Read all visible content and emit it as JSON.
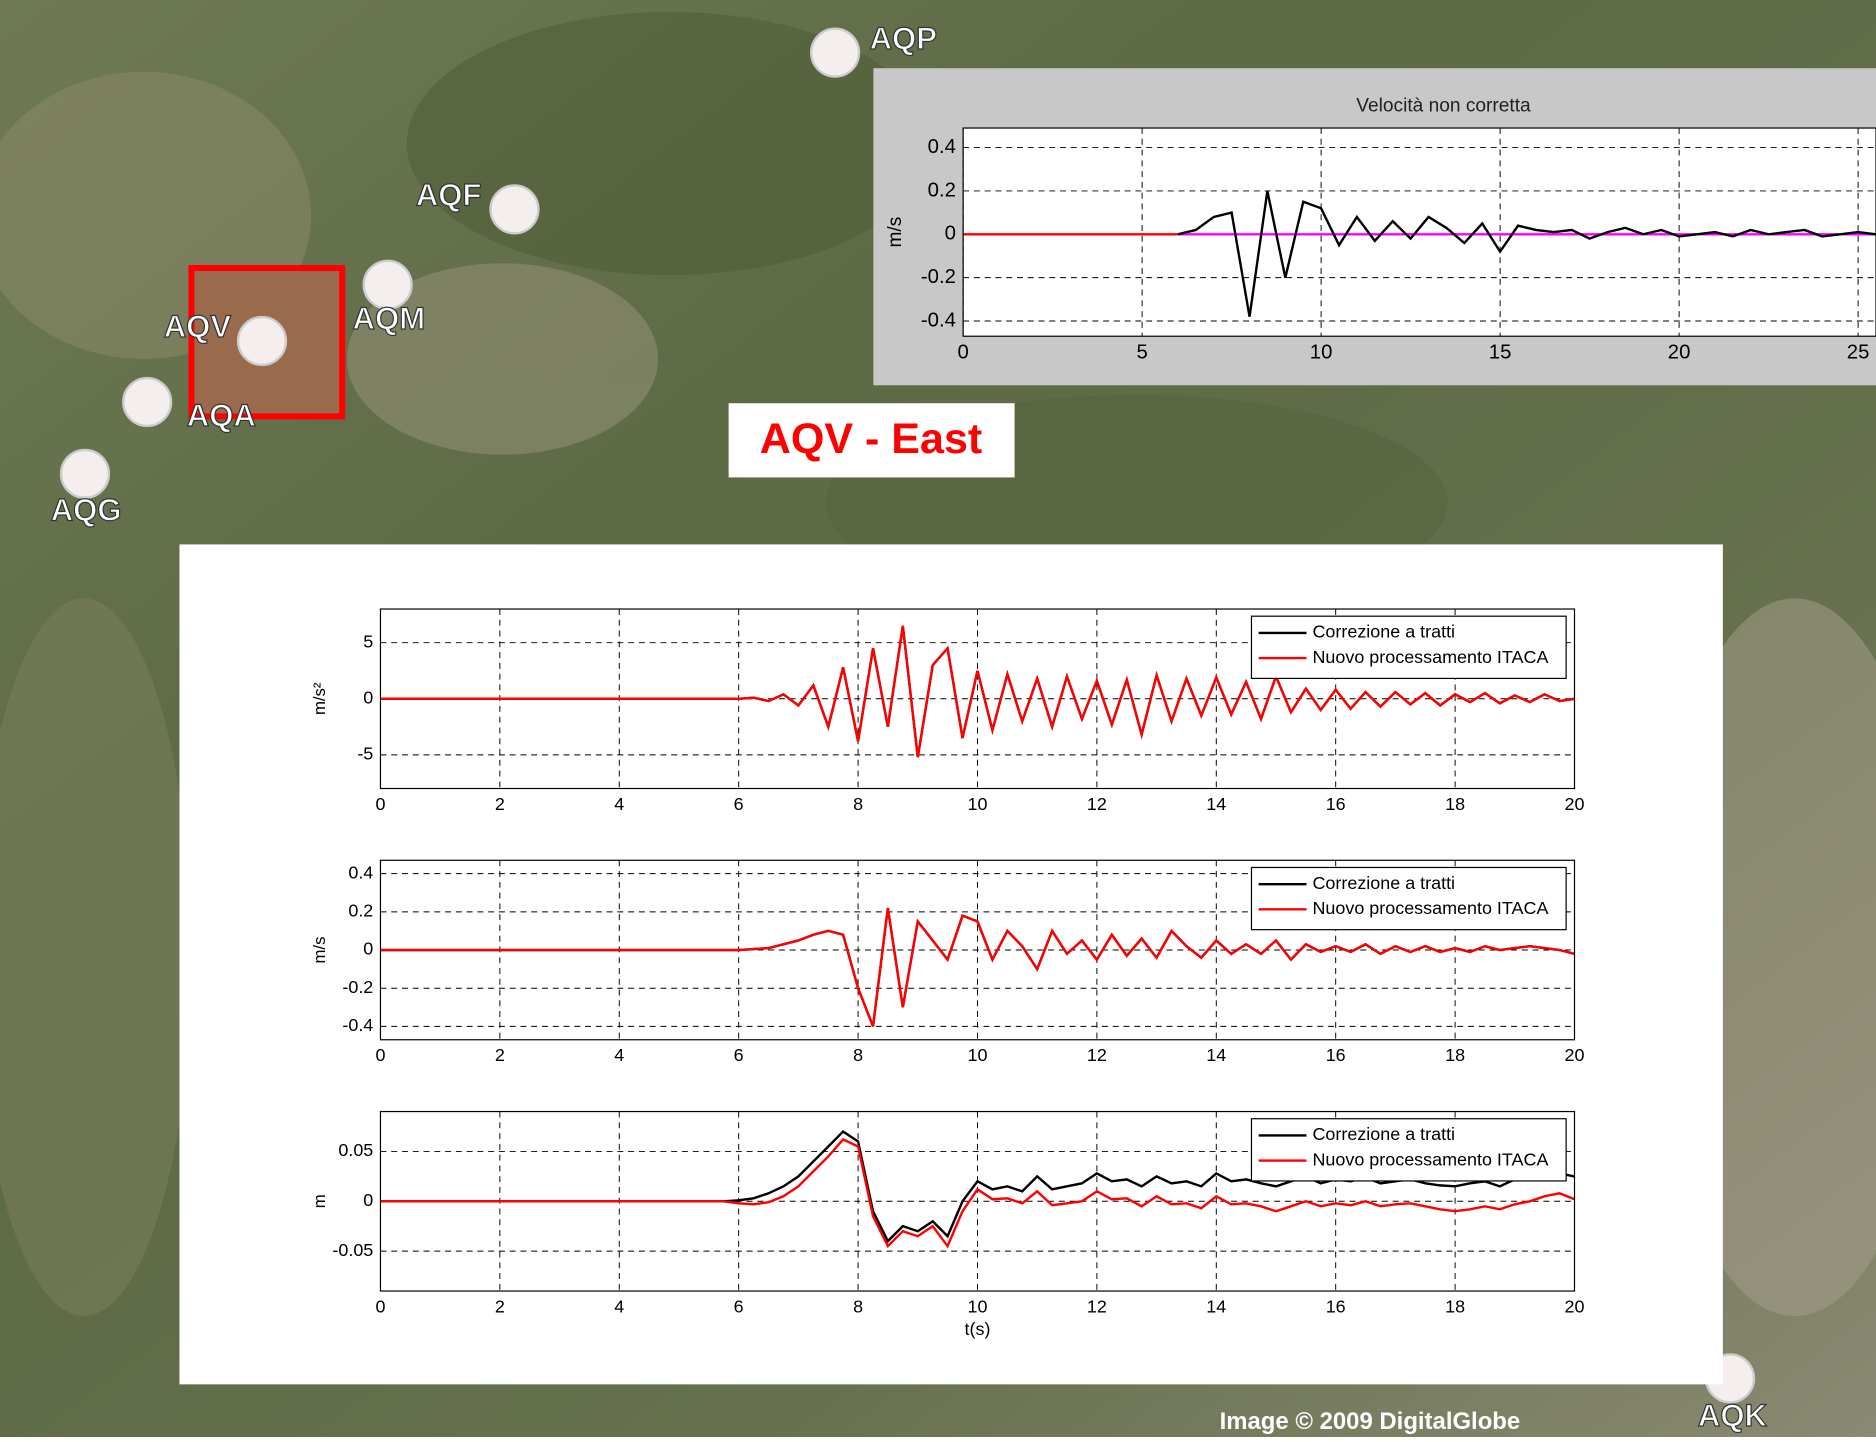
{
  "heading": "AQV - East",
  "credit": "Image © 2009 DigitalGlobe",
  "stations": [
    "AQP",
    "AQF",
    "AQM",
    "AQV",
    "AQA",
    "AQG",
    "AQK"
  ],
  "chart_data": [
    {
      "type": "line",
      "title": "Velocità non corretta",
      "y_label": "m/s",
      "x": [
        0,
        0.5,
        1,
        1.5,
        2,
        2.5,
        3,
        3.5,
        4,
        4.5,
        5,
        5.5,
        6,
        6.5,
        7,
        7.5,
        8,
        8.5,
        9,
        9.5,
        10,
        10.5,
        11,
        11.5,
        12,
        12.5,
        13,
        13.5,
        14,
        14.5,
        15,
        15.5,
        16,
        16.5,
        17,
        17.5,
        18,
        18.5,
        19,
        19.5,
        20,
        20.5,
        21,
        21.5,
        22,
        22.5,
        23,
        23.5,
        24,
        24.5,
        25,
        25.5
      ],
      "series": [
        {
          "color": "#ff0000",
          "values": [
            0,
            0,
            0,
            0,
            0,
            0,
            0,
            0,
            0,
            0,
            0,
            0,
            0,
            null,
            null,
            null,
            null,
            null,
            null,
            null,
            null,
            null,
            null,
            null,
            null,
            null,
            null,
            null,
            null,
            null,
            null,
            null,
            null,
            null,
            null,
            null,
            null,
            null,
            null,
            null,
            null,
            null,
            null,
            null,
            null,
            null,
            null,
            null,
            null,
            null,
            null,
            null
          ]
        },
        {
          "color": "#ff00ff",
          "values": [
            null,
            null,
            null,
            null,
            null,
            null,
            null,
            null,
            null,
            null,
            null,
            null,
            0,
            0,
            0,
            0,
            0,
            0,
            0,
            0,
            0,
            0,
            0,
            0,
            0,
            0,
            0,
            0,
            0,
            0,
            0,
            0,
            0,
            0,
            0,
            0,
            0,
            0,
            0,
            0,
            0,
            0,
            0,
            0,
            0,
            0,
            0,
            0,
            0,
            0,
            0,
            0
          ]
        },
        {
          "color": "#000000",
          "values": [
            null,
            null,
            null,
            null,
            null,
            null,
            null,
            null,
            null,
            null,
            null,
            null,
            0,
            0.02,
            0.08,
            0.1,
            -0.38,
            0.2,
            -0.2,
            0.15,
            0.12,
            -0.05,
            0.08,
            -0.03,
            0.06,
            -0.02,
            0.08,
            0.03,
            -0.04,
            0.05,
            -0.08,
            0.04,
            0.02,
            0.01,
            0.02,
            -0.02,
            0.01,
            0.03,
            0,
            0.02,
            -0.01,
            0,
            0.01,
            -0.01,
            0.02,
            0,
            0.01,
            0.02,
            -0.01,
            0,
            0.01,
            0
          ]
        }
      ],
      "xlim": [
        0,
        25.5
      ],
      "ylim": [
        -0.47,
        0.49
      ],
      "xticks": [
        0,
        5,
        10,
        15,
        20,
        25
      ],
      "yticks": [
        -0.4,
        -0.2,
        0,
        0.2,
        0.4
      ],
      "grid": true
    },
    {
      "type": "line",
      "y_label": "m/s²",
      "x": [
        0,
        0.25,
        0.5,
        0.75,
        1,
        1.25,
        1.5,
        1.75,
        2,
        2.25,
        2.5,
        2.75,
        3,
        3.25,
        3.5,
        3.75,
        4,
        4.25,
        4.5,
        4.75,
        5,
        5.25,
        5.5,
        5.75,
        6,
        6.25,
        6.5,
        6.75,
        7,
        7.25,
        7.5,
        7.75,
        8,
        8.25,
        8.5,
        8.75,
        9,
        9.25,
        9.5,
        9.75,
        10,
        10.25,
        10.5,
        10.75,
        11,
        11.25,
        11.5,
        11.75,
        12,
        12.25,
        12.5,
        12.75,
        13,
        13.25,
        13.5,
        13.75,
        14,
        14.25,
        14.5,
        14.75,
        15,
        15.25,
        15.5,
        15.75,
        16,
        16.25,
        16.5,
        16.75,
        17,
        17.25,
        17.5,
        17.75,
        18,
        18.25,
        18.5,
        18.75,
        19,
        19.25,
        19.5,
        19.75,
        20
      ],
      "series": [
        {
          "name": "Correzione a tratti",
          "color": "#000000",
          "values": [
            0,
            0,
            0,
            0,
            0,
            0,
            0,
            0,
            0,
            0,
            0,
            0,
            0,
            0,
            0,
            0,
            0,
            0,
            0,
            0,
            0,
            0,
            0,
            0,
            0,
            0.1,
            -0.2,
            0.4,
            -0.6,
            1.2,
            -2.5,
            2.8,
            -3.8,
            4.5,
            -2.5,
            6.5,
            -5.2,
            3,
            4.5,
            -3.5,
            2.5,
            -2.8,
            2.2,
            -2,
            1.8,
            -2.5,
            2,
            -1.8,
            1.6,
            -2.3,
            1.7,
            -3.2,
            2.1,
            -2,
            1.8,
            -1.5,
            1.9,
            -1.4,
            1.5,
            -1.8,
            2,
            -1.2,
            0.9,
            -1,
            0.8,
            -0.9,
            0.6,
            -0.7,
            0.6,
            -0.5,
            0.5,
            -0.6,
            0.4,
            -0.3,
            0.5,
            -0.4,
            0.3,
            -0.3,
            0.4,
            -0.2,
            0
          ]
        },
        {
          "name": "Nuovo processamento ITACA",
          "color": "#ff0000",
          "values": [
            0,
            0,
            0,
            0,
            0,
            0,
            0,
            0,
            0,
            0,
            0,
            0,
            0,
            0,
            0,
            0,
            0,
            0,
            0,
            0,
            0,
            0,
            0,
            0,
            0,
            0.1,
            -0.2,
            0.4,
            -0.6,
            1.2,
            -2.5,
            2.8,
            -3.8,
            4.5,
            -2.5,
            6.5,
            -5.2,
            3,
            4.5,
            -3.5,
            2.5,
            -2.8,
            2.2,
            -2,
            1.8,
            -2.5,
            2,
            -1.8,
            1.6,
            -2.3,
            1.7,
            -3.2,
            2.1,
            -2,
            1.8,
            -1.5,
            1.9,
            -1.4,
            1.5,
            -1.8,
            2,
            -1.2,
            0.9,
            -1,
            0.8,
            -0.9,
            0.6,
            -0.7,
            0.6,
            -0.5,
            0.5,
            -0.6,
            0.4,
            -0.3,
            0.5,
            -0.4,
            0.3,
            -0.3,
            0.4,
            -0.2,
            0
          ]
        }
      ],
      "xlim": [
        0,
        20
      ],
      "ylim": [
        -8,
        8
      ],
      "xticks": [
        0,
        2,
        4,
        6,
        8,
        10,
        12,
        14,
        16,
        18,
        20
      ],
      "yticks": [
        -5,
        0,
        5
      ],
      "grid": true,
      "legend": "upper right"
    },
    {
      "type": "line",
      "y_label": "m/s",
      "x": [
        0,
        0.25,
        0.5,
        0.75,
        1,
        1.25,
        1.5,
        1.75,
        2,
        2.25,
        2.5,
        2.75,
        3,
        3.25,
        3.5,
        3.75,
        4,
        4.25,
        4.5,
        4.75,
        5,
        5.25,
        5.5,
        5.75,
        6,
        6.25,
        6.5,
        6.75,
        7,
        7.25,
        7.5,
        7.75,
        8,
        8.25,
        8.5,
        8.75,
        9,
        9.25,
        9.5,
        9.75,
        10,
        10.25,
        10.5,
        10.75,
        11,
        11.25,
        11.5,
        11.75,
        12,
        12.25,
        12.5,
        12.75,
        13,
        13.25,
        13.5,
        13.75,
        14,
        14.25,
        14.5,
        14.75,
        15,
        15.25,
        15.5,
        15.75,
        16,
        16.25,
        16.5,
        16.75,
        17,
        17.25,
        17.5,
        17.75,
        18,
        18.25,
        18.5,
        18.75,
        19,
        19.25,
        19.5,
        19.75,
        20
      ],
      "series": [
        {
          "name": "Correzione a tratti",
          "color": "#000000",
          "values": [
            0,
            0,
            0,
            0,
            0,
            0,
            0,
            0,
            0,
            0,
            0,
            0,
            0,
            0,
            0,
            0,
            0,
            0,
            0,
            0,
            0,
            0,
            0,
            0,
            0,
            0.005,
            0.01,
            0.03,
            0.05,
            0.08,
            0.1,
            0.08,
            -0.2,
            -0.4,
            0.22,
            -0.3,
            0.15,
            0.05,
            -0.05,
            0.18,
            0.15,
            -0.05,
            0.1,
            0.02,
            -0.1,
            0.1,
            -0.02,
            0.05,
            -0.05,
            0.08,
            -0.03,
            0.06,
            -0.04,
            0.1,
            0.02,
            -0.04,
            0.05,
            -0.02,
            0.03,
            -0.02,
            0.05,
            -0.05,
            0.03,
            -0.01,
            0.02,
            -0.01,
            0.03,
            -0.02,
            0.02,
            -0.01,
            0.02,
            -0.01,
            0.01,
            -0.01,
            0.02,
            0,
            0.01,
            0.02,
            0.01,
            0,
            -0.02
          ]
        },
        {
          "name": "Nuovo processamento ITACA",
          "color": "#ff0000",
          "values": [
            0,
            0,
            0,
            0,
            0,
            0,
            0,
            0,
            0,
            0,
            0,
            0,
            0,
            0,
            0,
            0,
            0,
            0,
            0,
            0,
            0,
            0,
            0,
            0,
            0,
            0.005,
            0.01,
            0.03,
            0.05,
            0.08,
            0.1,
            0.08,
            -0.2,
            -0.4,
            0.22,
            -0.3,
            0.15,
            0.05,
            -0.05,
            0.18,
            0.15,
            -0.05,
            0.1,
            0.02,
            -0.1,
            0.1,
            -0.02,
            0.05,
            -0.05,
            0.08,
            -0.03,
            0.06,
            -0.04,
            0.1,
            0.02,
            -0.04,
            0.05,
            -0.02,
            0.03,
            -0.02,
            0.05,
            -0.05,
            0.03,
            -0.01,
            0.02,
            -0.01,
            0.03,
            -0.02,
            0.02,
            -0.01,
            0.02,
            -0.01,
            0.01,
            -0.01,
            0.02,
            0,
            0.01,
            0.02,
            0.01,
            0,
            -0.02
          ]
        }
      ],
      "xlim": [
        0,
        20
      ],
      "ylim": [
        -0.47,
        0.47
      ],
      "xticks": [
        0,
        2,
        4,
        6,
        8,
        10,
        12,
        14,
        16,
        18,
        20
      ],
      "yticks": [
        -0.4,
        -0.2,
        0,
        0.2,
        0.4
      ],
      "grid": true,
      "legend": "upper right"
    },
    {
      "type": "line",
      "y_label": "m",
      "x_label": "t(s)",
      "x": [
        0,
        0.25,
        0.5,
        0.75,
        1,
        1.25,
        1.5,
        1.75,
        2,
        2.25,
        2.5,
        2.75,
        3,
        3.25,
        3.5,
        3.75,
        4,
        4.25,
        4.5,
        4.75,
        5,
        5.25,
        5.5,
        5.75,
        6,
        6.25,
        6.5,
        6.75,
        7,
        7.25,
        7.5,
        7.75,
        8,
        8.25,
        8.5,
        8.75,
        9,
        9.25,
        9.5,
        9.75,
        10,
        10.25,
        10.5,
        10.75,
        11,
        11.25,
        11.5,
        11.75,
        12,
        12.25,
        12.5,
        12.75,
        13,
        13.25,
        13.5,
        13.75,
        14,
        14.25,
        14.5,
        14.75,
        15,
        15.25,
        15.5,
        15.75,
        16,
        16.25,
        16.5,
        16.75,
        17,
        17.25,
        17.5,
        17.75,
        18,
        18.25,
        18.5,
        18.75,
        19,
        19.25,
        19.5,
        19.75,
        20
      ],
      "series": [
        {
          "name": "Correzione a tratti",
          "color": "#000000",
          "values": [
            0,
            0,
            0,
            0,
            0,
            0,
            0,
            0,
            0,
            0,
            0,
            0,
            0,
            0,
            0,
            0,
            0,
            0,
            0,
            0,
            0,
            0,
            0,
            0,
            0.001,
            0.003,
            0.008,
            0.015,
            0.025,
            0.04,
            0.055,
            0.07,
            0.06,
            -0.01,
            -0.04,
            -0.025,
            -0.03,
            -0.02,
            -0.035,
            0,
            0.02,
            0.012,
            0.015,
            0.01,
            0.025,
            0.012,
            0.015,
            0.018,
            0.028,
            0.02,
            0.022,
            0.015,
            0.025,
            0.018,
            0.02,
            0.015,
            0.028,
            0.02,
            0.022,
            0.018,
            0.015,
            0.02,
            0.025,
            0.018,
            0.022,
            0.02,
            0.024,
            0.018,
            0.02,
            0.022,
            0.018,
            0.016,
            0.015,
            0.018,
            0.02,
            0.015,
            0.022,
            0.025,
            0.025,
            0.028,
            0.025
          ]
        },
        {
          "name": "Nuovo processamento ITACA",
          "color": "#ff0000",
          "values": [
            0,
            0,
            0,
            0,
            0,
            0,
            0,
            0,
            0,
            0,
            0,
            0,
            0,
            0,
            0,
            0,
            0,
            0,
            0,
            0,
            0,
            0,
            0,
            0,
            -0.002,
            -0.003,
            -0.001,
            0.005,
            0.015,
            0.03,
            0.045,
            0.062,
            0.055,
            -0.015,
            -0.045,
            -0.03,
            -0.035,
            -0.025,
            -0.045,
            -0.01,
            0.012,
            0.002,
            0.003,
            -0.002,
            0.01,
            -0.004,
            -0.002,
            0,
            0.01,
            0.002,
            0.003,
            -0.005,
            0.005,
            -0.003,
            -0.002,
            -0.007,
            0.005,
            -0.003,
            -0.002,
            -0.005,
            -0.01,
            -0.005,
            0,
            -0.005,
            -0.002,
            -0.004,
            0,
            -0.005,
            -0.003,
            -0.002,
            -0.005,
            -0.008,
            -0.01,
            -0.008,
            -0.005,
            -0.008,
            -0.003,
            0,
            0.005,
            0.008,
            0.002
          ]
        }
      ],
      "xlim": [
        0,
        20
      ],
      "ylim": [
        -0.09,
        0.09
      ],
      "xticks": [
        0,
        2,
        4,
        6,
        8,
        10,
        12,
        14,
        16,
        18,
        20
      ],
      "yticks": [
        -0.05,
        0,
        0.05
      ],
      "grid": true,
      "legend": "upper right"
    }
  ]
}
